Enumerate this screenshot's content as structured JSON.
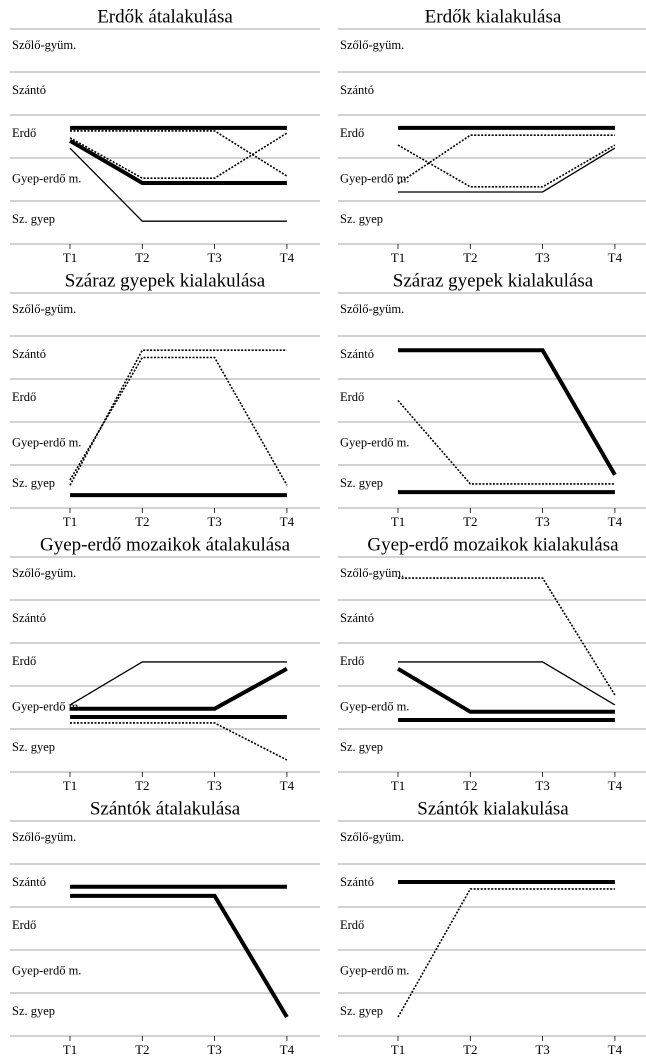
{
  "chart_data": [
    {
      "type": "line",
      "title": "Erdők átalakulása",
      "categories": [
        "T1",
        "T2",
        "T3",
        "T4"
      ],
      "ylim": [
        0,
        5
      ],
      "ygrid": [
        0,
        1,
        2,
        3,
        4,
        5
      ],
      "yticks": [
        {
          "value": 0.55,
          "label": "Sz. gyep"
        },
        {
          "value": 1.5,
          "label": "Gyep-erdő m."
        },
        {
          "value": 2.55,
          "label": "Erdő"
        },
        {
          "value": 3.55,
          "label": "Szántó"
        },
        {
          "value": 4.6,
          "label": "Szőlő-gyüm."
        }
      ],
      "series": [
        {
          "style": "thick",
          "color": "#000000",
          "values": [
            2.7,
            2.7,
            2.7,
            2.7
          ]
        },
        {
          "style": "thick",
          "color": "#000000",
          "values": [
            2.4,
            1.42,
            1.42,
            1.42
          ]
        },
        {
          "style": "dotted",
          "color": "#000000",
          "values": [
            2.47,
            1.53,
            1.53,
            2.58
          ]
        },
        {
          "style": "dotted",
          "color": "#000000",
          "values": [
            2.63,
            2.63,
            2.63,
            1.58
          ]
        },
        {
          "style": "thin",
          "color": "#000000",
          "values": [
            2.23,
            0.53,
            0.53,
            0.53
          ]
        }
      ]
    },
    {
      "type": "line",
      "title": "Erdők kialakulása",
      "categories": [
        "T1",
        "T2",
        "T3",
        "T4"
      ],
      "ylim": [
        0,
        5
      ],
      "ygrid": [
        0,
        1,
        2,
        3,
        4,
        5
      ],
      "yticks": [
        {
          "value": 0.55,
          "label": "Sz. gyep"
        },
        {
          "value": 1.5,
          "label": "Gyep-erdő m."
        },
        {
          "value": 2.55,
          "label": "Erdő"
        },
        {
          "value": 3.55,
          "label": "Szántó"
        },
        {
          "value": 4.6,
          "label": "Szőlő-gyüm."
        }
      ],
      "series": [
        {
          "style": "thick",
          "color": "#000000",
          "values": [
            2.7,
            2.7,
            2.7,
            2.7
          ]
        },
        {
          "style": "thin",
          "color": "#000000",
          "values": [
            1.21,
            1.21,
            1.21,
            2.23
          ]
        },
        {
          "style": "dotted",
          "color": "#000000",
          "values": [
            1.4,
            2.53,
            2.53,
            2.53
          ]
        },
        {
          "style": "dotted",
          "color": "#000000",
          "values": [
            2.3,
            1.33,
            1.33,
            2.3
          ]
        }
      ]
    },
    {
      "type": "line",
      "title": "Száraz gyepek kialakulása",
      "categories": [
        "T1",
        "T2",
        "T3",
        "T4"
      ],
      "ylim": [
        0,
        5
      ],
      "ygrid": [
        0,
        1,
        2,
        3,
        4,
        5
      ],
      "yticks": [
        {
          "value": 0.55,
          "label": "Sz. gyep"
        },
        {
          "value": 1.5,
          "label": "Gyep-erdő m."
        },
        {
          "value": 2.55,
          "label": "Erdő"
        },
        {
          "value": 3.55,
          "label": "Szántó"
        },
        {
          "value": 4.6,
          "label": "Szőlő-gyüm."
        }
      ],
      "series": [
        {
          "style": "thick",
          "color": "#000000",
          "values": [
            0.3,
            0.3,
            0.3,
            0.3
          ]
        },
        {
          "style": "dotted",
          "color": "#000000",
          "values": [
            0.53,
            3.67,
            3.67,
            3.67
          ]
        },
        {
          "style": "dotted",
          "color": "#000000",
          "values": [
            0.65,
            3.5,
            3.5,
            0.53
          ]
        }
      ]
    },
    {
      "type": "line",
      "title": "Száraz gyepek kialakulása",
      "categories": [
        "T1",
        "T2",
        "T3",
        "T4"
      ],
      "ylim": [
        0,
        5
      ],
      "ygrid": [
        0,
        1,
        2,
        3,
        4,
        5
      ],
      "yticks": [
        {
          "value": 0.55,
          "label": "Sz. gyep"
        },
        {
          "value": 1.5,
          "label": "Gyep-erdő m."
        },
        {
          "value": 2.55,
          "label": "Erdő"
        },
        {
          "value": 3.55,
          "label": "Szántó"
        },
        {
          "value": 4.6,
          "label": "Szőlő-gyüm."
        }
      ],
      "series": [
        {
          "style": "thick",
          "color": "#000000",
          "values": [
            3.67,
            3.67,
            3.67,
            0.77
          ]
        },
        {
          "style": "thick",
          "color": "#000000",
          "values": [
            0.37,
            0.37,
            0.37,
            0.37
          ]
        },
        {
          "style": "dotted",
          "color": "#000000",
          "values": [
            2.5,
            0.56,
            0.56,
            0.56
          ]
        }
      ]
    },
    {
      "type": "line",
      "title": "Gyep-erdő mozaikok átalakulása",
      "categories": [
        "T1",
        "T2",
        "T3",
        "T4"
      ],
      "ylim": [
        0,
        5
      ],
      "ygrid": [
        0,
        1,
        2,
        3,
        4,
        5
      ],
      "yticks": [
        {
          "value": 0.55,
          "label": "Sz. gyep"
        },
        {
          "value": 1.5,
          "label": "Gyep-erdő m."
        },
        {
          "value": 2.55,
          "label": "Erdő"
        },
        {
          "value": 3.55,
          "label": "Szántó"
        },
        {
          "value": 4.6,
          "label": "Szőlő-gyüm."
        }
      ],
      "series": [
        {
          "style": "thin",
          "color": "#000000",
          "values": [
            1.56,
            2.56,
            2.56,
            2.56
          ]
        },
        {
          "style": "thick",
          "color": "#000000",
          "values": [
            1.47,
            1.47,
            1.47,
            2.4
          ]
        },
        {
          "style": "thick",
          "color": "#000000",
          "values": [
            1.28,
            1.28,
            1.28,
            1.28
          ]
        },
        {
          "style": "dotted",
          "color": "#000000",
          "values": [
            1.14,
            1.14,
            1.14,
            0.28
          ]
        }
      ]
    },
    {
      "type": "line",
      "title": "Gyep-erdő mozaikok kialakulása",
      "categories": [
        "T1",
        "T2",
        "T3",
        "T4"
      ],
      "ylim": [
        0,
        5
      ],
      "ygrid": [
        0,
        1,
        2,
        3,
        4,
        5
      ],
      "yticks": [
        {
          "value": 0.55,
          "label": "Sz. gyep"
        },
        {
          "value": 1.5,
          "label": "Gyep-erdő m."
        },
        {
          "value": 2.55,
          "label": "Erdő"
        },
        {
          "value": 3.55,
          "label": "Szántó"
        },
        {
          "value": 4.6,
          "label": "Szőlő-gyüm."
        }
      ],
      "series": [
        {
          "style": "dotted",
          "color": "#000000",
          "values": [
            4.51,
            4.51,
            4.51,
            1.79
          ]
        },
        {
          "style": "thin",
          "color": "#000000",
          "values": [
            2.56,
            2.56,
            2.56,
            1.56
          ]
        },
        {
          "style": "thick",
          "color": "#000000",
          "values": [
            2.4,
            1.4,
            1.4,
            1.4
          ]
        },
        {
          "style": "thick",
          "color": "#000000",
          "values": [
            1.21,
            1.21,
            1.21,
            1.21
          ]
        }
      ]
    },
    {
      "type": "line",
      "title": "Szántók átalakulása",
      "categories": [
        "T1",
        "T2",
        "T3",
        "T4"
      ],
      "ylim": [
        0,
        5
      ],
      "ygrid": [
        0,
        1,
        2,
        3,
        4,
        5
      ],
      "yticks": [
        {
          "value": 0.55,
          "label": "Sz. gyep"
        },
        {
          "value": 1.5,
          "label": "Gyep-erdő m."
        },
        {
          "value": 2.55,
          "label": "Erdő"
        },
        {
          "value": 3.55,
          "label": "Szántó"
        },
        {
          "value": 4.6,
          "label": "Szőlő-gyüm."
        }
      ],
      "series": [
        {
          "style": "thick",
          "color": "#000000",
          "values": [
            3.47,
            3.47,
            3.47,
            3.47
          ]
        },
        {
          "style": "thick",
          "color": "#000000",
          "values": [
            3.26,
            3.26,
            3.26,
            0.44
          ]
        }
      ]
    },
    {
      "type": "line",
      "title": "Szántók kialakulása",
      "categories": [
        "T1",
        "T2",
        "T3",
        "T4"
      ],
      "ylim": [
        0,
        5
      ],
      "ygrid": [
        0,
        1,
        2,
        3,
        4,
        5
      ],
      "yticks": [
        {
          "value": 0.55,
          "label": "Sz. gyep"
        },
        {
          "value": 1.5,
          "label": "Gyep-erdő m."
        },
        {
          "value": 2.55,
          "label": "Erdő"
        },
        {
          "value": 3.55,
          "label": "Szántó"
        },
        {
          "value": 4.6,
          "label": "Szőlő-gyüm."
        }
      ],
      "series": [
        {
          "style": "thick",
          "color": "#000000",
          "values": [
            3.58,
            3.58,
            3.58,
            3.58
          ]
        },
        {
          "style": "dotted",
          "color": "#000000",
          "values": [
            0.44,
            3.42,
            3.42,
            3.42
          ]
        }
      ]
    }
  ]
}
